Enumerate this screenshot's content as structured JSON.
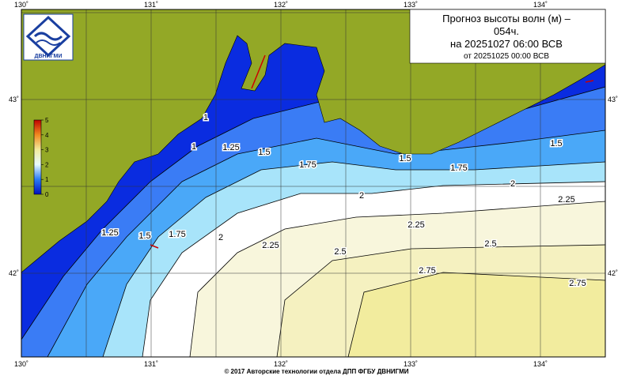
{
  "map": {
    "title": [
      "Прогноз высоты волн (м) –",
      "054ч.",
      "на 20251027 06:00 ВСВ",
      "от 20251025 00:00 ВСВ"
    ],
    "logo_text": "ДВНИГМИ",
    "lon_labels": [
      "130˚",
      "131˚",
      "132˚",
      "133˚",
      "134˚"
    ],
    "lat_labels": [
      "43˚",
      "42˚"
    ],
    "colorbar_ticks": [
      0,
      1,
      2,
      3,
      4,
      5
    ],
    "contour_labels": [
      1.25,
      1.5,
      1.75,
      2,
      1.5,
      1.75,
      2,
      1.5,
      2.25,
      2.25,
      2.5,
      2.5,
      2.25,
      2,
      1.75,
      1.5,
      1.25,
      2.75,
      2.75,
      1,
      1
    ],
    "footer": "© 2017 Авторские технологии отдела ДПП ФГБУ ДВНИГМИ"
  }
}
